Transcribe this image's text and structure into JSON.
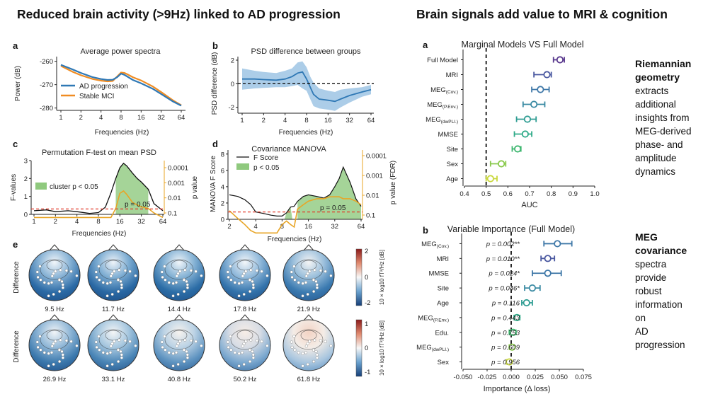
{
  "headings": {
    "left": "Reduced brain activity (>9Hz) linked to AD progression",
    "right": "Brain signals add value to MRI & cognition"
  },
  "colors": {
    "ad": "#2f78b5",
    "mci": "#f08c22",
    "fill_blue": "#9ec4e4",
    "orange_axis": "#e8a526",
    "green_fill": "#8fc97e",
    "dash_red": "#e23a2a",
    "purple_p": "#8e2a93"
  },
  "panel_a": {
    "label": "a",
    "title": "Average power spectra",
    "ylabel": "Power (dB)",
    "xlabel": "Frequencies (Hz)",
    "xticks": [
      "1",
      "2",
      "4",
      "8",
      "16",
      "32",
      "64"
    ],
    "yticks": [
      "-260",
      "-270",
      "-280"
    ],
    "legend": [
      "AD progression",
      "Stable MCI"
    ]
  },
  "panel_b": {
    "label": "b",
    "title": "PSD difference between groups",
    "ylabel": "PSD difference (dB)",
    "xlabel": "Frequencies (Hz)",
    "xticks": [
      "1",
      "2",
      "4",
      "8",
      "16",
      "32",
      "64"
    ],
    "yticks": [
      "2",
      "0",
      "-2"
    ]
  },
  "panel_c": {
    "label": "c",
    "title": "Permutation F-test on mean PSD",
    "ylabel": "F-values",
    "ylabel_right": "p value",
    "xlabel": "Frequencies (Hz)",
    "xticks": [
      "1",
      "2",
      "4",
      "8",
      "16",
      "32",
      "64"
    ],
    "yticks": [
      "3",
      "2",
      "1",
      "0"
    ],
    "yticks_right": [
      "0.0001",
      "0.001",
      "0.01",
      "0.1"
    ],
    "legend": "cluster p < 0.05",
    "threshold_label": "p = 0.05"
  },
  "panel_d": {
    "label": "d",
    "title": "Covariance MANOVA",
    "ylabel": "MANOVA F Score",
    "ylabel_right": "p value (FDR)",
    "xlabel": "Frequencies (Hz)",
    "xticks": [
      "2",
      "4",
      "8",
      "16",
      "32",
      "64"
    ],
    "yticks": [
      "8",
      "6",
      "4",
      "2",
      "0"
    ],
    "yticks_right": [
      "0.0001",
      "0.001",
      "0.01",
      "0.1"
    ],
    "legend": [
      "F Score",
      "p < 0.05"
    ],
    "threshold_label": "p = 0.05"
  },
  "panel_e": {
    "label": "e",
    "row_label": "Difference",
    "row1_freqs": [
      "9.5 Hz",
      "11.7 Hz",
      "14.4 Hz",
      "17.8 Hz",
      "21.9 Hz"
    ],
    "row2_freqs": [
      "26.9 Hz",
      "33.1 Hz",
      "40.8 Hz",
      "50.2 Hz",
      "61.8 Hz"
    ],
    "cbar1_ticks": [
      "2",
      "0",
      "-2"
    ],
    "cbar2_ticks": [
      "1",
      "0",
      "-1"
    ],
    "cbar_label": "10 × log10 fT²/Hz [dB]"
  },
  "chart_data": [
    {
      "id": "panel-a",
      "type": "line",
      "title": "Average power spectra",
      "xlabel": "Frequencies (Hz)",
      "ylabel": "Power (dB)",
      "xscale": "log2",
      "xlim": [
        1,
        64
      ],
      "ylim": [
        -281,
        -258
      ],
      "x": [
        1,
        1.5,
        2,
        3,
        4,
        5,
        6,
        7,
        8,
        9,
        10,
        12,
        16,
        24,
        32,
        48,
        64
      ],
      "series": [
        {
          "name": "AD progression",
          "values": [
            -261.5,
            -263.5,
            -265.0,
            -266.8,
            -267.6,
            -268.0,
            -267.9,
            -266.8,
            -265.3,
            -265.8,
            -266.6,
            -268.0,
            -269.4,
            -271.8,
            -274.0,
            -277.2,
            -279.0
          ]
        },
        {
          "name": "Stable MCI",
          "values": [
            -262.0,
            -264.5,
            -266.0,
            -267.6,
            -268.3,
            -268.6,
            -268.4,
            -266.5,
            -264.8,
            -265.0,
            -265.6,
            -266.8,
            -268.2,
            -270.8,
            -273.2,
            -276.7,
            -278.8
          ]
        }
      ]
    },
    {
      "id": "panel-b",
      "type": "line",
      "title": "PSD difference between groups",
      "xlabel": "Frequencies (Hz)",
      "ylabel": "PSD difference (dB)",
      "xscale": "log2",
      "xlim": [
        1,
        64
      ],
      "ylim": [
        -2.5,
        2.3
      ],
      "reference_line": 0,
      "x": [
        1,
        1.5,
        2,
        3,
        4,
        5,
        6,
        7,
        8,
        9,
        10,
        12,
        16,
        20,
        24,
        32,
        48,
        64
      ],
      "series": [
        {
          "name": "mean",
          "values": [
            0.4,
            0.4,
            0.35,
            0.3,
            0.4,
            0.6,
            0.9,
            1.0,
            0.4,
            -0.3,
            -0.9,
            -1.3,
            -1.4,
            -1.5,
            -1.3,
            -1.0,
            -0.7,
            -0.5
          ]
        },
        {
          "name": "ci_lower",
          "values": [
            -0.5,
            -0.4,
            -0.35,
            -0.3,
            -0.3,
            -0.2,
            -0.1,
            -0.4,
            -0.6,
            -1.3,
            -1.9,
            -2.1,
            -2.2,
            -2.3,
            -2.0,
            -1.6,
            -1.1,
            -0.9
          ]
        },
        {
          "name": "ci_upper",
          "values": [
            1.3,
            1.1,
            1.0,
            0.9,
            1.1,
            1.3,
            1.8,
            1.9,
            1.4,
            0.6,
            0.1,
            -0.4,
            -0.6,
            -0.7,
            -0.5,
            -0.4,
            -0.3,
            -0.1
          ]
        }
      ]
    },
    {
      "id": "panel-c",
      "type": "line",
      "title": "Permutation F-test on mean PSD",
      "xlabel": "Frequencies (Hz)",
      "ylabel": "F-values",
      "xscale": "log2",
      "xlim": [
        1,
        64
      ],
      "ylim": [
        0,
        3
      ],
      "threshold": 0.3,
      "threshold_label": "p = 0.05",
      "cluster_x": [
        14,
        40
      ],
      "x": [
        1,
        1.5,
        2,
        3,
        4,
        6,
        8,
        10,
        12,
        14,
        16,
        18,
        20,
        24,
        28,
        32,
        40,
        48,
        64
      ],
      "series": [
        {
          "name": "F-values",
          "values": [
            0.2,
            0.25,
            0.15,
            0.2,
            0.15,
            0.05,
            0.1,
            0.4,
            1.2,
            2.0,
            2.6,
            2.85,
            2.7,
            2.3,
            2.0,
            1.8,
            1.4,
            0.6,
            0.2
          ]
        },
        {
          "name": "p value",
          "values": [
            0.2,
            0.2,
            0.2,
            0.2,
            0.2,
            0.2,
            0.2,
            0.2,
            0.2,
            0.05,
            0.005,
            0.0035,
            0.006,
            0.02,
            0.03,
            0.04,
            0.05,
            0.1,
            0.2
          ]
        }
      ]
    },
    {
      "id": "panel-d",
      "type": "line",
      "title": "Covariance MANOVA",
      "xlabel": "Frequencies (Hz)",
      "ylabel": "MANOVA F Score",
      "xscale": "log2",
      "xlim": [
        2,
        64
      ],
      "ylim": [
        0,
        8.5
      ],
      "threshold": 0.9,
      "threshold_label": "p = 0.05",
      "x": [
        2,
        2.5,
        3,
        3.5,
        4,
        5,
        6,
        7,
        8,
        9,
        10,
        11,
        12,
        14,
        16,
        20,
        24,
        28,
        32,
        36,
        40,
        48,
        56,
        64
      ],
      "series": [
        {
          "name": "F Score",
          "values": [
            3.0,
            2.8,
            2.4,
            1.8,
            0.9,
            0.7,
            0.5,
            0.4,
            0.4,
            0.8,
            1.5,
            1.6,
            2.2,
            2.8,
            3.0,
            2.8,
            2.6,
            3.0,
            4.0,
            5.0,
            6.4,
            4.5,
            2.5,
            1.6
          ]
        },
        {
          "name": "p value (FDR)",
          "values": [
            0.06,
            0.15,
            0.3,
            0.6,
            0.8,
            0.8,
            0.8,
            0.8,
            0.3,
            0.2,
            0.3,
            0.4,
            0.05,
            0.03,
            0.02,
            0.015,
            0.015,
            0.012,
            0.012,
            0.012,
            0.015,
            0.015,
            0.02,
            0.03
          ]
        }
      ]
    },
    {
      "id": "right-a",
      "type": "scatter",
      "title": "Marginal Models VS Full Model",
      "xlabel": "AUC",
      "xlim": [
        0.4,
        1.0
      ],
      "reference_line": 0.5,
      "xticks": [
        "0.4",
        "0.5",
        "0.6",
        "0.7",
        "0.8",
        "0.9",
        "1.0"
      ],
      "categories": [
        "Full Model",
        "MRI",
        "MEG(Cov.)",
        "MEG(P.Env.)",
        "MEG(dwPLI.)",
        "MMSE",
        "Site",
        "Sex",
        "Age"
      ],
      "values": [
        0.84,
        0.78,
        0.75,
        0.72,
        0.69,
        0.68,
        0.645,
        0.57,
        0.52
      ],
      "ci_low": [
        0.81,
        0.72,
        0.71,
        0.67,
        0.64,
        0.63,
        0.62,
        0.52,
        0.5
      ],
      "ci_high": [
        0.86,
        0.8,
        0.79,
        0.77,
        0.73,
        0.71,
        0.66,
        0.59,
        0.55
      ],
      "point_colors": [
        "#5a3a8e",
        "#4a58a0",
        "#3f78a8",
        "#3a8aa3",
        "#2f9d93",
        "#2eaa88",
        "#3cb66e",
        "#89c94b",
        "#c9d83c"
      ],
      "category_labels": [
        [
          "Full Model",
          ""
        ],
        [
          "MRI",
          ""
        ],
        [
          "MEG",
          "(Cov.)"
        ],
        [
          "MEG",
          "(P.Env.)"
        ],
        [
          "MEG",
          "(dwPLI.)"
        ],
        [
          "MMSE",
          ""
        ],
        [
          "Site",
          ""
        ],
        [
          "Sex",
          ""
        ],
        [
          "Age",
          ""
        ]
      ]
    },
    {
      "id": "right-b",
      "type": "scatter",
      "title": "Variable Importance (Full Model)",
      "xlabel": "Importance (Δ loss)",
      "xlim": [
        -0.05,
        0.075
      ],
      "reference_line": 0,
      "xticks": [
        "-0.050",
        "-0.025",
        "0.000",
        "0.025",
        "0.050",
        "0.075"
      ],
      "categories": [
        "MEG(Cov.)",
        "MRI",
        "MMSE",
        "Site",
        "Age",
        "MEG(P.Env.)",
        "Edu.",
        "MEG(dwPLI.)",
        "Sex"
      ],
      "values": [
        0.048,
        0.038,
        0.038,
        0.022,
        0.016,
        0.006,
        0.002,
        0.001,
        -0.002
      ],
      "ci_low": [
        0.034,
        0.031,
        0.022,
        0.014,
        0.011,
        0.003,
        -0.002,
        -0.002,
        -0.005
      ],
      "ci_high": [
        0.063,
        0.045,
        0.052,
        0.03,
        0.022,
        0.009,
        0.005,
        0.003,
        0.0
      ],
      "p_labels": [
        "p = 0.002**",
        "p = 0.010**",
        "p = 0.024*",
        "p = 0.046*",
        "p = 0.116",
        "p = 0.443",
        "p = 0.753",
        "p = 0.609",
        "p = 0.956"
      ],
      "p_significant": [
        true,
        true,
        true,
        true,
        false,
        false,
        false,
        false,
        false
      ],
      "point_colors": [
        "#3f78a8",
        "#4a58a0",
        "#3f78a8",
        "#3a8aa3",
        "#2f9d93",
        "#2eaa88",
        "#3cb66e",
        "#89c94b",
        "#c9d83c"
      ],
      "category_labels": [
        [
          "MEG",
          "(Cov.)"
        ],
        [
          "MRI",
          ""
        ],
        [
          "MMSE",
          ""
        ],
        [
          "Site",
          ""
        ],
        [
          "Age",
          ""
        ],
        [
          "MEG",
          "(P.Env.)"
        ],
        [
          "Edu.",
          ""
        ],
        [
          "MEG",
          "(dwPLI.)"
        ],
        [
          "Sex",
          ""
        ]
      ]
    }
  ],
  "right_a_label": "a",
  "right_b_label": "b",
  "side_note_1": {
    "bold": [
      "Riemannian",
      "geometry"
    ],
    "lines": [
      "extracts",
      "additional",
      "insights from",
      "MEG-derived",
      "phase- and",
      "amplitude",
      "dynamics"
    ]
  },
  "side_note_2": {
    "bold": [
      "MEG",
      "covariance"
    ],
    "lines": [
      "spectra",
      "provide",
      "robust",
      "information",
      "on",
      "AD",
      "progression"
    ]
  }
}
